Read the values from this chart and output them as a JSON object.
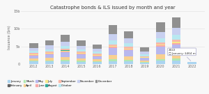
{
  "title": "Catastrophe bonds & ILS issued by month and year",
  "years": [
    2012,
    2013,
    2014,
    2015,
    2016,
    2017,
    2018,
    2019,
    2020,
    2021,
    2022
  ],
  "ylabel": "Issuance ($m)",
  "ylim": [
    0,
    15000
  ],
  "ytick_labels": [
    "0",
    "5b",
    "10b",
    "15b"
  ],
  "ytick_vals": [
    0,
    5000,
    10000,
    15000
  ],
  "months": [
    "January",
    "February",
    "March",
    "April",
    "May",
    "June",
    "July",
    "August",
    "September",
    "October",
    "November",
    "December"
  ],
  "colors": [
    "#aad4f0",
    "#606060",
    "#b0e8b0",
    "#f8d090",
    "#b8b8ee",
    "#f8a8a8",
    "#f8e888",
    "#30a898",
    "#f8b8a8",
    "#b8e8f0",
    "#c8d0f0",
    "#909090"
  ],
  "data": {
    "2012": [
      700,
      0,
      200,
      600,
      800,
      200,
      150,
      0,
      400,
      600,
      900,
      1300
    ],
    "2013": [
      700,
      0,
      300,
      700,
      1100,
      150,
      200,
      0,
      300,
      700,
      1100,
      1500
    ],
    "2014": [
      700,
      0,
      400,
      900,
      1400,
      200,
      200,
      100,
      500,
      800,
      1200,
      1800
    ],
    "2015": [
      600,
      0,
      300,
      700,
      1200,
      150,
      150,
      0,
      400,
      700,
      1000,
      1600
    ],
    "2016": [
      600,
      0,
      200,
      500,
      900,
      100,
      150,
      0,
      400,
      600,
      800,
      1200
    ],
    "2017": [
      800,
      0,
      600,
      1200,
      2000,
      300,
      200,
      0,
      500,
      1100,
      1800,
      2500
    ],
    "2018": [
      700,
      0,
      400,
      1100,
      1700,
      250,
      200,
      0,
      500,
      1000,
      1500,
      2000
    ],
    "2019": [
      400,
      0,
      200,
      400,
      700,
      100,
      100,
      0,
      300,
      500,
      800,
      1200
    ],
    "2020": [
      900,
      0,
      500,
      1400,
      2200,
      300,
      200,
      0,
      700,
      1100,
      1800,
      2800
    ],
    "2021": [
      900,
      0,
      600,
      1600,
      2500,
      400,
      300,
      0,
      700,
      1200,
      2000,
      3100
    ],
    "2022": [
      464,
      0,
      0,
      0,
      0,
      0,
      0,
      0,
      0,
      0,
      0,
      0
    ]
  },
  "tooltip_text": "2022\n□ January: $464 m",
  "background_color": "#f8f8f8",
  "bar_width": 0.55
}
